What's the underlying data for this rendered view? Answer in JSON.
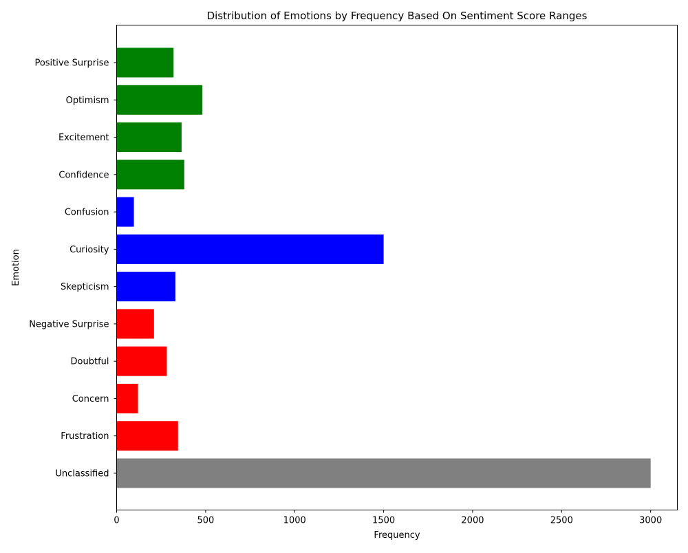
{
  "chart_data": {
    "type": "bar",
    "orientation": "horizontal",
    "title": "Distribution of Emotions by Frequency Based On Sentiment Score Ranges",
    "xlabel": "Frequency",
    "ylabel": "Emotion",
    "xlim": [
      0,
      3150
    ],
    "xticks": [
      0,
      500,
      1000,
      1500,
      2000,
      2500,
      3000
    ],
    "grid": false,
    "categories": [
      "Unclassified",
      "Frustration",
      "Concern",
      "Doubtful",
      "Negative Surprise",
      "Skepticism",
      "Curiosity",
      "Confusion",
      "Confidence",
      "Excitement",
      "Optimism",
      "Positive Surprise"
    ],
    "values": [
      3000,
      345,
      120,
      282,
      210,
      330,
      1500,
      97,
      380,
      365,
      482,
      320
    ],
    "colors": [
      "#808080",
      "#ff0000",
      "#ff0000",
      "#ff0000",
      "#ff0000",
      "#0000ff",
      "#0000ff",
      "#0000ff",
      "#008000",
      "#008000",
      "#008000",
      "#008000"
    ]
  }
}
